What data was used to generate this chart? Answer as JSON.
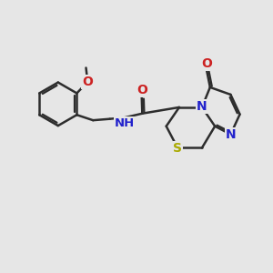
{
  "bg_color": "#e6e6e6",
  "bond_color": "#2d2d2d",
  "N_color": "#2222cc",
  "O_color": "#cc2222",
  "S_color": "#aaaa00",
  "line_width": 1.8,
  "figsize": [
    3.0,
    3.0
  ],
  "dpi": 100,
  "xlim": [
    0,
    10
  ],
  "ylim": [
    0,
    10
  ]
}
